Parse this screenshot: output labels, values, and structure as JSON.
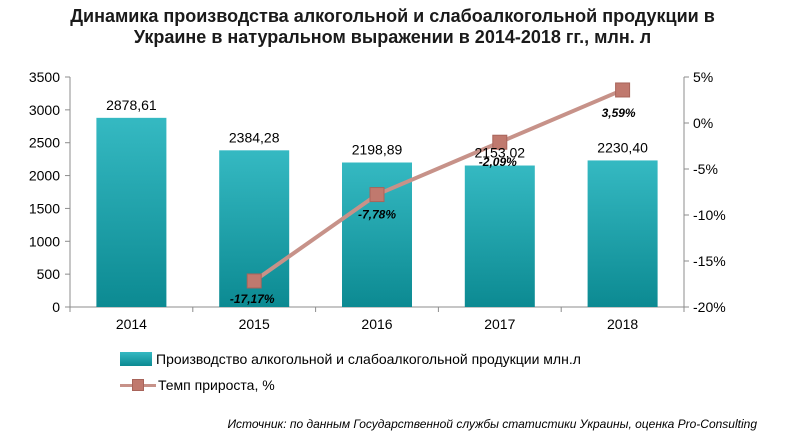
{
  "title_line1": "Динамика производства алкогольной и слабоалкогольной продукции в",
  "title_line2": "Украине в натуральном выражении в 2014-2018 гг., млн. л",
  "legend": {
    "bar_label": "Производство алкогольной  и слабоалкогольной  продукции  млн.л",
    "line_label": "Темп прироста, %"
  },
  "source": "Источник: по данным Государственной службы статистики Украины, оценка Pro-Consulting",
  "colors": {
    "bar_top": "#35b9c2",
    "bar_bottom": "#0c8a92",
    "line": "#c79289",
    "marker": "#c0796e"
  },
  "chart_data": {
    "type": "bar",
    "categories": [
      "2014",
      "2015",
      "2016",
      "2017",
      "2018"
    ],
    "series": [
      {
        "name": "Производство алкогольной  и слабоалкогольной  продукции  млн.л",
        "type": "bar",
        "axis": "left",
        "values": [
          2878.61,
          2384.28,
          2198.89,
          2153.02,
          2230.4
        ],
        "labels": [
          "2878,61",
          "2384,28",
          "2198,89",
          "2153,02",
          "2230,40"
        ]
      },
      {
        "name": "Темп прироста, %",
        "type": "line",
        "axis": "right",
        "values": [
          null,
          -17.17,
          -7.78,
          -2.09,
          3.59
        ],
        "labels": [
          "",
          "-17,17%",
          "-7,78%",
          "-2,09%",
          "3,59%"
        ]
      }
    ],
    "y_left": {
      "min": 0,
      "max": 3500,
      "ticks": [
        0,
        500,
        1000,
        1500,
        2000,
        2500,
        3000,
        3500
      ],
      "tick_labels": [
        "0",
        "500",
        "1000",
        "1500",
        "2000",
        "2500",
        "3000",
        "3500"
      ]
    },
    "y_right": {
      "min": -20,
      "max": 5,
      "ticks": [
        -20,
        -15,
        -10,
        -5,
        0,
        5
      ],
      "tick_labels": [
        "-20%",
        "-15%",
        "-10%",
        "-5%",
        "0%",
        "5%"
      ]
    },
    "grid": false,
    "legend_position": "bottom"
  }
}
